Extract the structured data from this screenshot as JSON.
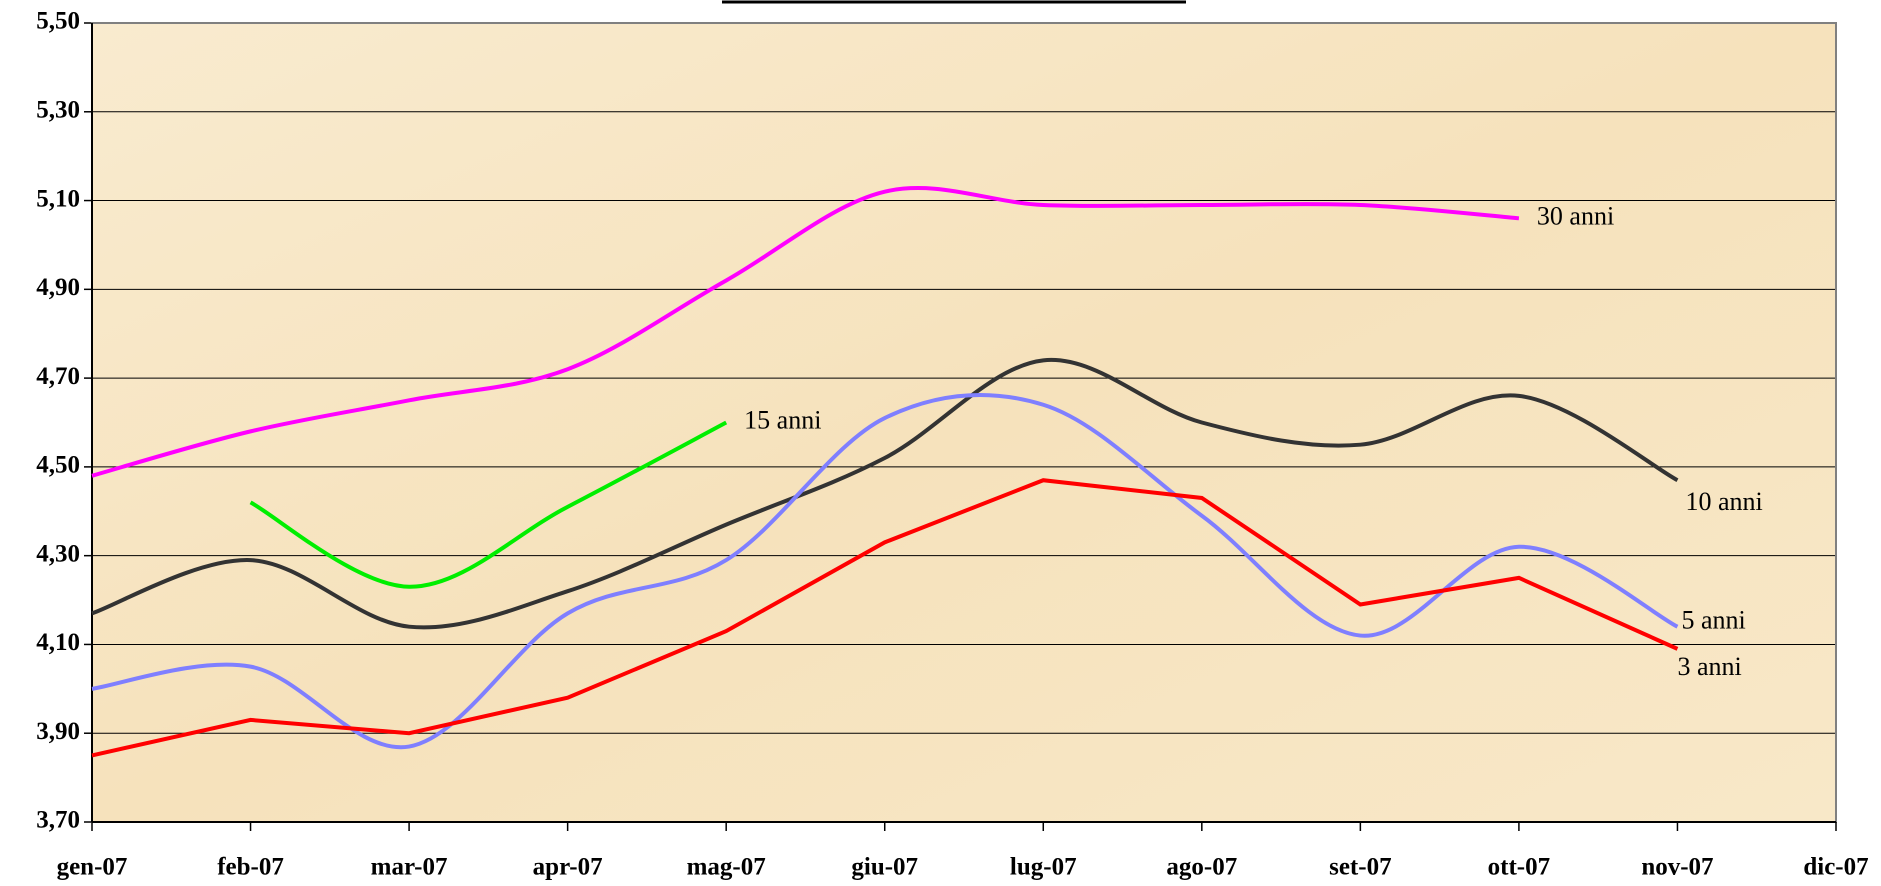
{
  "chart_data": {
    "type": "line",
    "categories": [
      "gen-07",
      "feb-07",
      "mar-07",
      "apr-07",
      "mag-07",
      "giu-07",
      "lug-07",
      "ago-07",
      "set-07",
      "ott-07",
      "nov-07",
      "dic-07"
    ],
    "ylim": [
      3.7,
      5.5
    ],
    "yticks": [
      {
        "value": 3.7,
        "label": "3,70"
      },
      {
        "value": 3.9,
        "label": "3,90"
      },
      {
        "value": 4.1,
        "label": "4,10"
      },
      {
        "value": 4.3,
        "label": "4,30"
      },
      {
        "value": 4.5,
        "label": "4,50"
      },
      {
        "value": 4.7,
        "label": "4,70"
      },
      {
        "value": 4.9,
        "label": "4,90"
      },
      {
        "value": 5.1,
        "label": "5,10"
      },
      {
        "value": 5.3,
        "label": "5,30"
      },
      {
        "value": 5.5,
        "label": "5,50"
      }
    ],
    "grid": true,
    "series": [
      {
        "name": "30 anni",
        "color": "#ff00ff",
        "smooth": true,
        "values": [
          4.48,
          4.58,
          4.65,
          4.72,
          4.92,
          5.12,
          5.09,
          5.09,
          5.09,
          5.06,
          null,
          null
        ]
      },
      {
        "name": "15 anni",
        "color": "#00ee00",
        "smooth": true,
        "values": [
          null,
          4.42,
          4.23,
          4.41,
          4.6,
          null,
          null,
          null,
          null,
          null,
          null,
          null
        ]
      },
      {
        "name": "10 anni",
        "color": "#333333",
        "smooth": true,
        "values": [
          4.17,
          4.29,
          4.14,
          4.22,
          4.37,
          4.52,
          4.74,
          4.6,
          4.55,
          4.66,
          4.47,
          null
        ]
      },
      {
        "name": "5 anni",
        "color": "#7f7fff",
        "smooth": true,
        "values": [
          4.0,
          4.05,
          3.87,
          4.17,
          4.29,
          4.61,
          4.64,
          4.39,
          4.12,
          4.32,
          4.14,
          null
        ]
      },
      {
        "name": "3 anni",
        "color": "#ff0000",
        "smooth": false,
        "values": [
          3.85,
          3.93,
          3.9,
          3.98,
          4.13,
          4.33,
          4.47,
          4.43,
          4.19,
          4.25,
          4.09,
          null
        ]
      }
    ]
  }
}
